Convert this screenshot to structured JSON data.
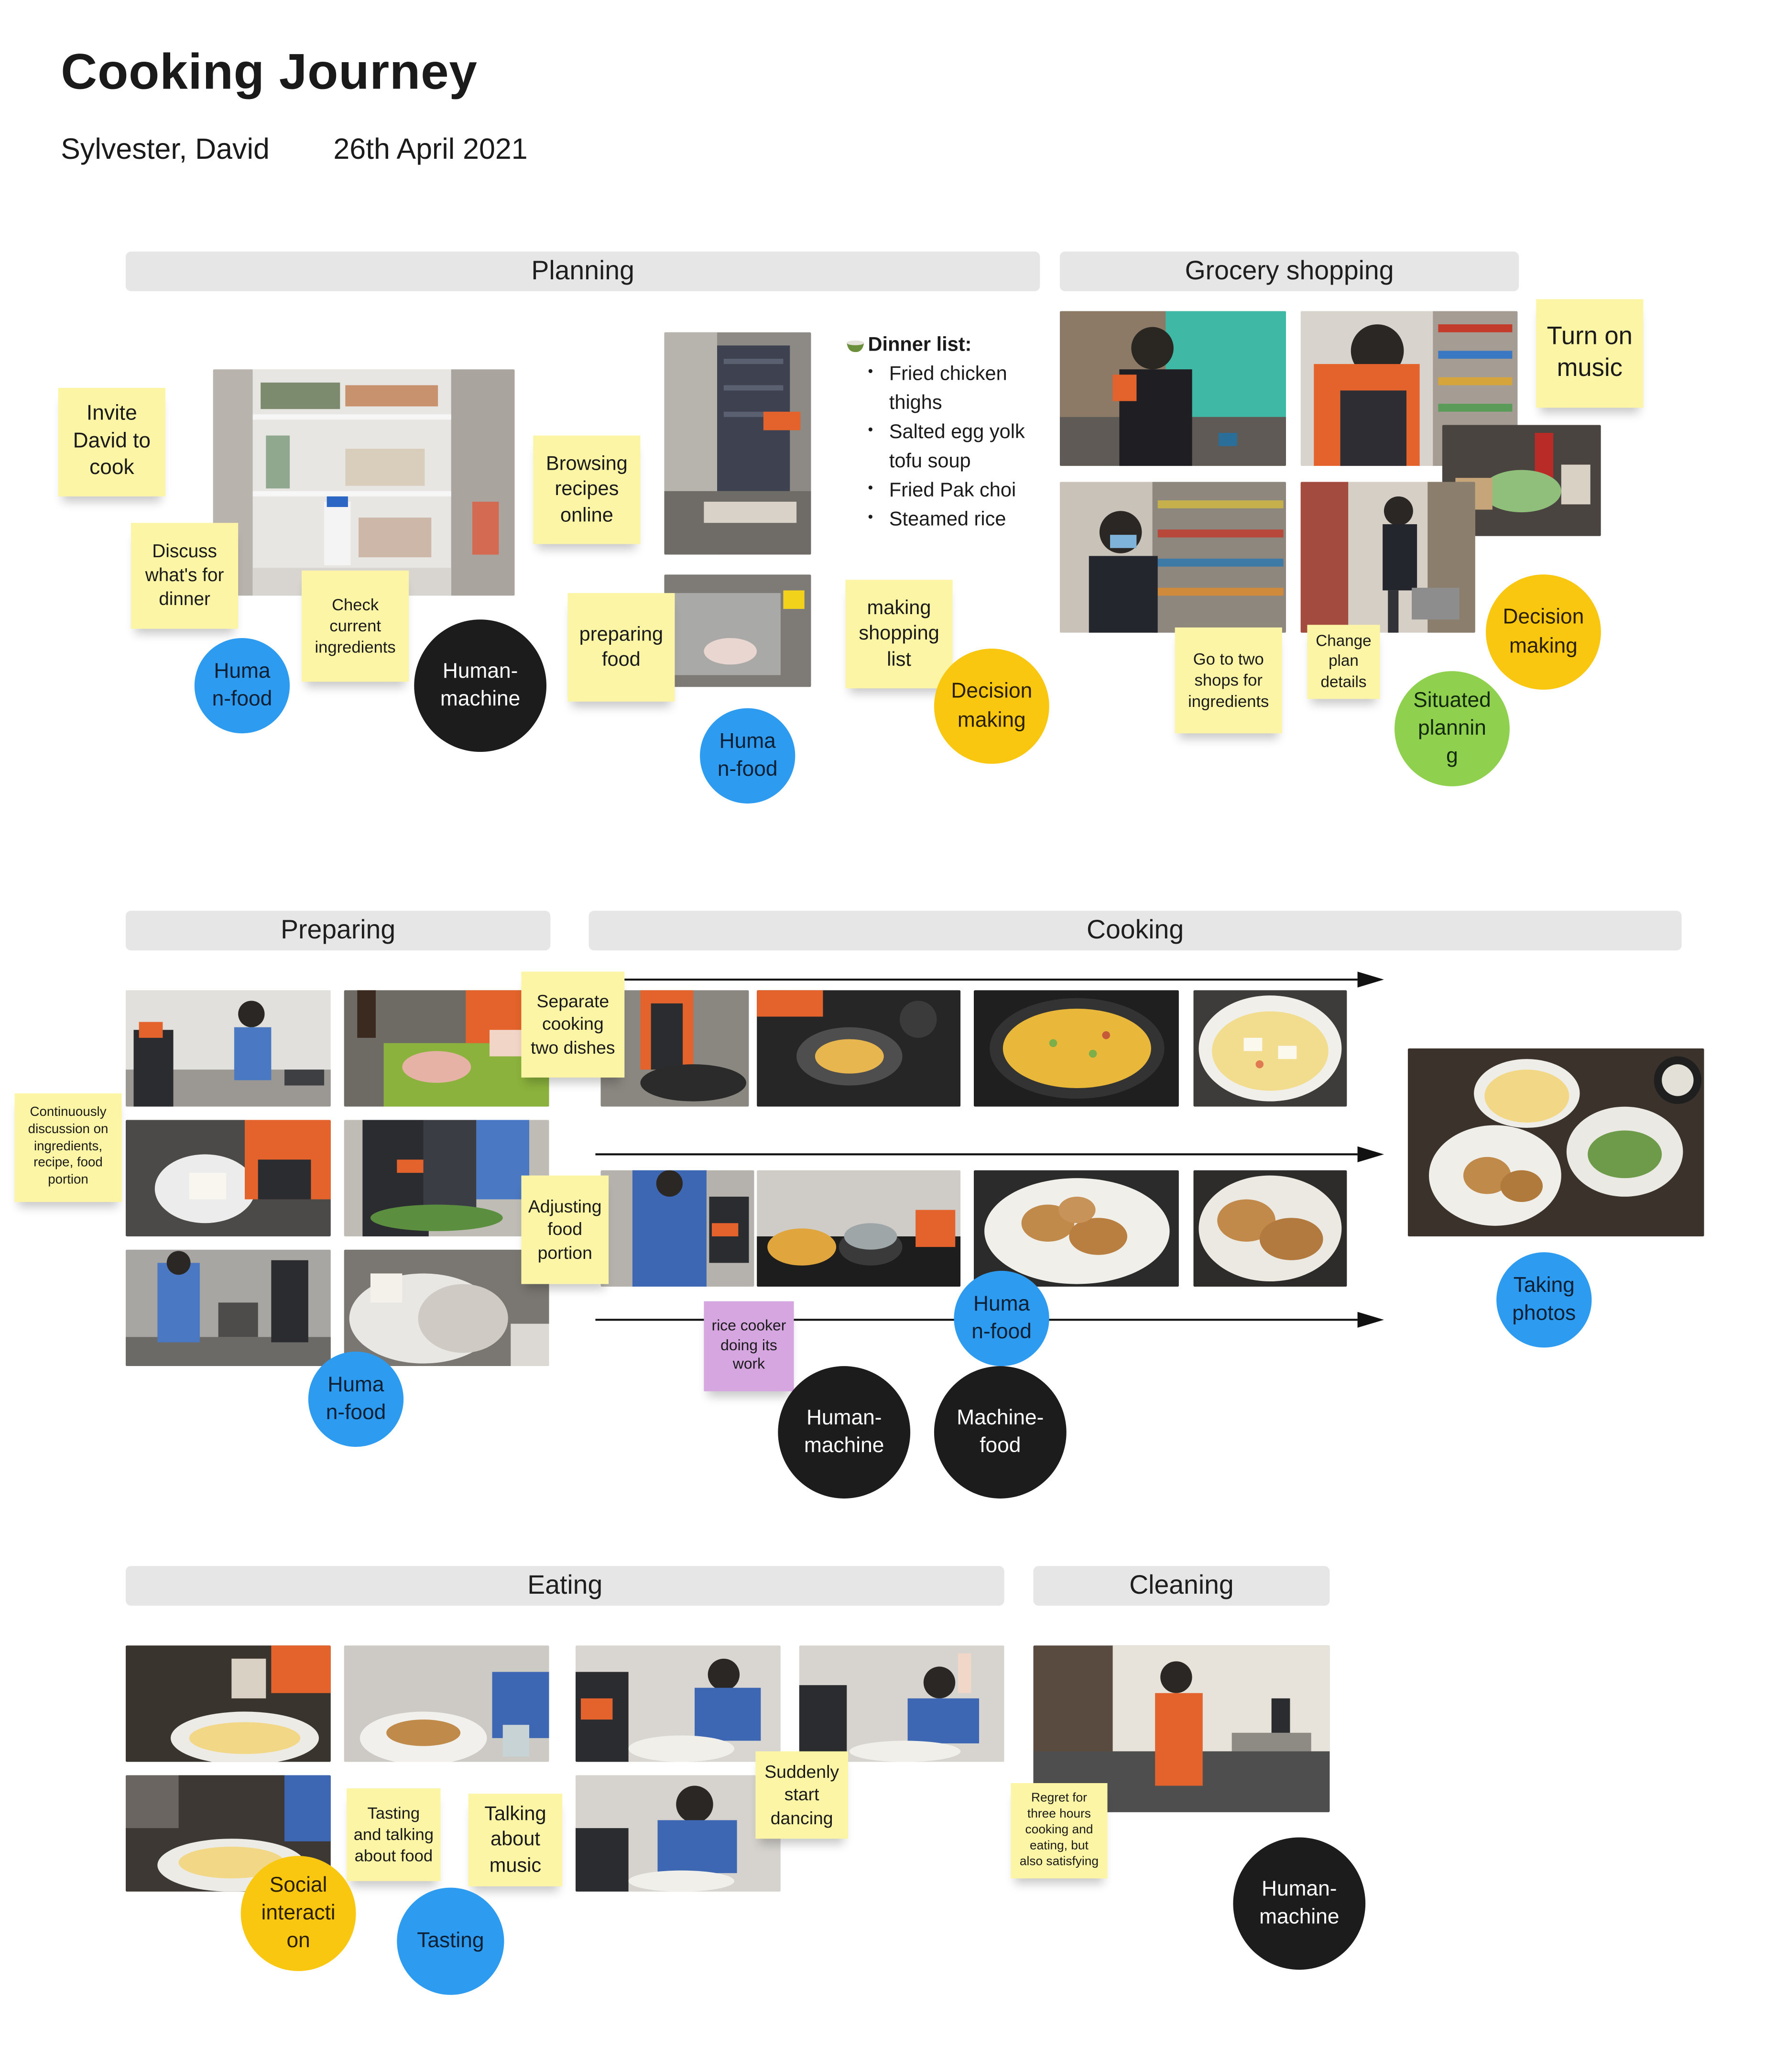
{
  "board": {
    "title": "Cooking Journey",
    "authors": "Sylvester, David",
    "date": "26th April 2021"
  },
  "sections": {
    "planning": "Planning",
    "grocery": "Grocery shopping",
    "preparing": "Preparing",
    "cooking": "Cooking",
    "eating": "Eating",
    "cleaning": "Cleaning"
  },
  "dinner_list": {
    "heading": "Dinner list:",
    "icon": "bowl-icon",
    "items": [
      "Fried chicken thighs",
      "Salted egg yolk tofu soup",
      "Fried Pak choi",
      "Steamed rice"
    ]
  },
  "stickies": {
    "invite": "Invite\nDavid to\ncook",
    "discuss": "Discuss\nwhat's for\ndinner",
    "check": "Check\ncurrent\ningredients",
    "browsing": "Browsing\nrecipes\nonline",
    "preparing_food": "preparing\nfood",
    "shopping_list": "making\nshopping\nlist",
    "music": "Turn on\nmusic",
    "two_shops": "Go to two\nshops for\ningredients",
    "change_plan": "Change\nplan\ndetails",
    "separate": "Separate\ncooking\ntwo dishes",
    "adjusting": "Adjusting\nfood\nportion",
    "continuous": "Continuously\ndiscussion on\ningredients,\nrecipe, food\nportion",
    "rice_cooker": "rice cooker\ndoing its\nwork",
    "tasting_talking": "Tasting\nand talking\nabout food",
    "talking_music": "Talking\nabout\nmusic",
    "dancing": "Suddenly\nstart\ndancing",
    "regret": "Regret for\nthree hours\ncooking and\neating, but\nalso satisfying"
  },
  "tags": {
    "human_food_1": "Huma\nn-food",
    "human_machine_1": "Human-\nmachine",
    "human_food_2": "Huma\nn-food",
    "decision_1": "Decision\nmaking",
    "decision_2": "Decision\nmaking",
    "situated": "Situated\nplannin\ng",
    "human_food_3": "Huma\nn-food",
    "human_food_4": "Huma\nn-food",
    "human_machine_2": "Human-\nmachine",
    "machine_food": "Machine-\nfood",
    "taking_photos": "Taking\nphotos",
    "social": "Social\ninteracti\non",
    "tasting": "Tasting",
    "human_machine_3": "Human-\nmachine"
  },
  "colors": {
    "sticky_yellow": "#fdf5a6",
    "sticky_purple": "#d6a6e0",
    "tag_blue": "#2d9bf0",
    "tag_black": "#1c1c1c",
    "tag_yellow": "#fac710",
    "tag_green": "#8fd14f",
    "section_band": "#e6e6e6"
  }
}
